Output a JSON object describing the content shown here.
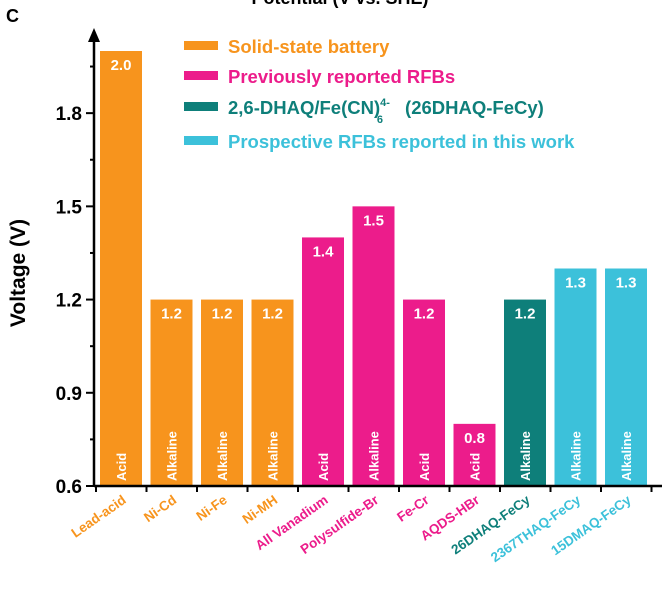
{
  "panel_label": "C",
  "chart_data": {
    "type": "bar",
    "title": "Potential (V vs. SHE)",
    "ylabel": "Voltage (V)",
    "xlabel": "",
    "ylim": [
      0.6,
      2.0
    ],
    "yticks": [
      "0.6",
      "0.9",
      "1.2",
      "1.5",
      "1.8"
    ],
    "grid": false,
    "legend_position": "top-right",
    "legend": [
      {
        "label": "Solid-state battery",
        "color": "#F7941D"
      },
      {
        "label": "Previously reported RFBs",
        "color": "#EC1C8B"
      },
      {
        "label": "2,6-DHAQ/Fe(CN)",
        "sup": "4-",
        "sub": "6",
        "suffix": "(26DHAQ-FeCy)",
        "color": "#0E7F7A"
      },
      {
        "label": "Prospective RFBs reported in this work",
        "color": "#3CC1DA"
      }
    ],
    "categories": [
      "Lead-acid",
      "Ni-Cd",
      "Ni-Fe",
      "Ni-MH",
      "All Vanadium",
      "Polysulfide-Br",
      "Fe-Cr",
      "AQDS-HBr",
      "26DHAQ-FeCy",
      "2367THAQ-FeCy",
      "15DMAQ-FeCy"
    ],
    "values": [
      2.0,
      1.2,
      1.2,
      1.2,
      1.4,
      1.5,
      1.2,
      0.8,
      1.2,
      1.3,
      1.3
    ],
    "value_labels": [
      "2.0",
      "1.2",
      "1.2",
      "1.2",
      "1.4",
      "1.5",
      "1.2",
      "0.8",
      "1.2",
      "1.3",
      "1.3"
    ],
    "electrolyte": [
      "Acid",
      "Alkaline",
      "Alkaline",
      "Alkaline",
      "Acid",
      "Alkaline",
      "Acid",
      "Acid",
      "Alkaline",
      "Alkaline",
      "Alkaline"
    ],
    "colors": [
      "#F7941D",
      "#F7941D",
      "#F7941D",
      "#F7941D",
      "#EC1C8B",
      "#EC1C8B",
      "#EC1C8B",
      "#EC1C8B",
      "#0E7F7A",
      "#3CC1DA",
      "#3CC1DA"
    ]
  }
}
